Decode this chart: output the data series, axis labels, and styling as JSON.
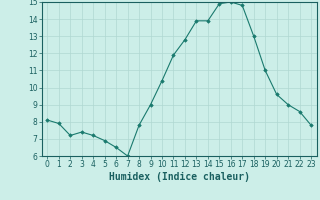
{
  "x": [
    0,
    1,
    2,
    3,
    4,
    5,
    6,
    7,
    8,
    9,
    10,
    11,
    12,
    13,
    14,
    15,
    16,
    17,
    18,
    19,
    20,
    21,
    22,
    23
  ],
  "y": [
    8.1,
    7.9,
    7.2,
    7.4,
    7.2,
    6.9,
    6.5,
    6.0,
    7.8,
    9.0,
    10.4,
    11.9,
    12.8,
    13.9,
    13.9,
    14.9,
    15.0,
    14.8,
    13.0,
    11.0,
    9.6,
    9.0,
    8.6,
    7.8
  ],
  "line_color": "#1a7a6e",
  "marker": "D",
  "marker_size": 1.8,
  "background_color": "#cceee8",
  "grid_color": "#b0d8d2",
  "xlabel": "Humidex (Indice chaleur)",
  "ylim": [
    6,
    15
  ],
  "xlim": [
    -0.5,
    23.5
  ],
  "yticks": [
    6,
    7,
    8,
    9,
    10,
    11,
    12,
    13,
    14,
    15
  ],
  "xticks": [
    0,
    1,
    2,
    3,
    4,
    5,
    6,
    7,
    8,
    9,
    10,
    11,
    12,
    13,
    14,
    15,
    16,
    17,
    18,
    19,
    20,
    21,
    22,
    23
  ],
  "tick_label_fontsize": 5.5,
  "xlabel_fontsize": 7.0,
  "tick_color": "#1a6060",
  "spine_color": "#1a6060"
}
